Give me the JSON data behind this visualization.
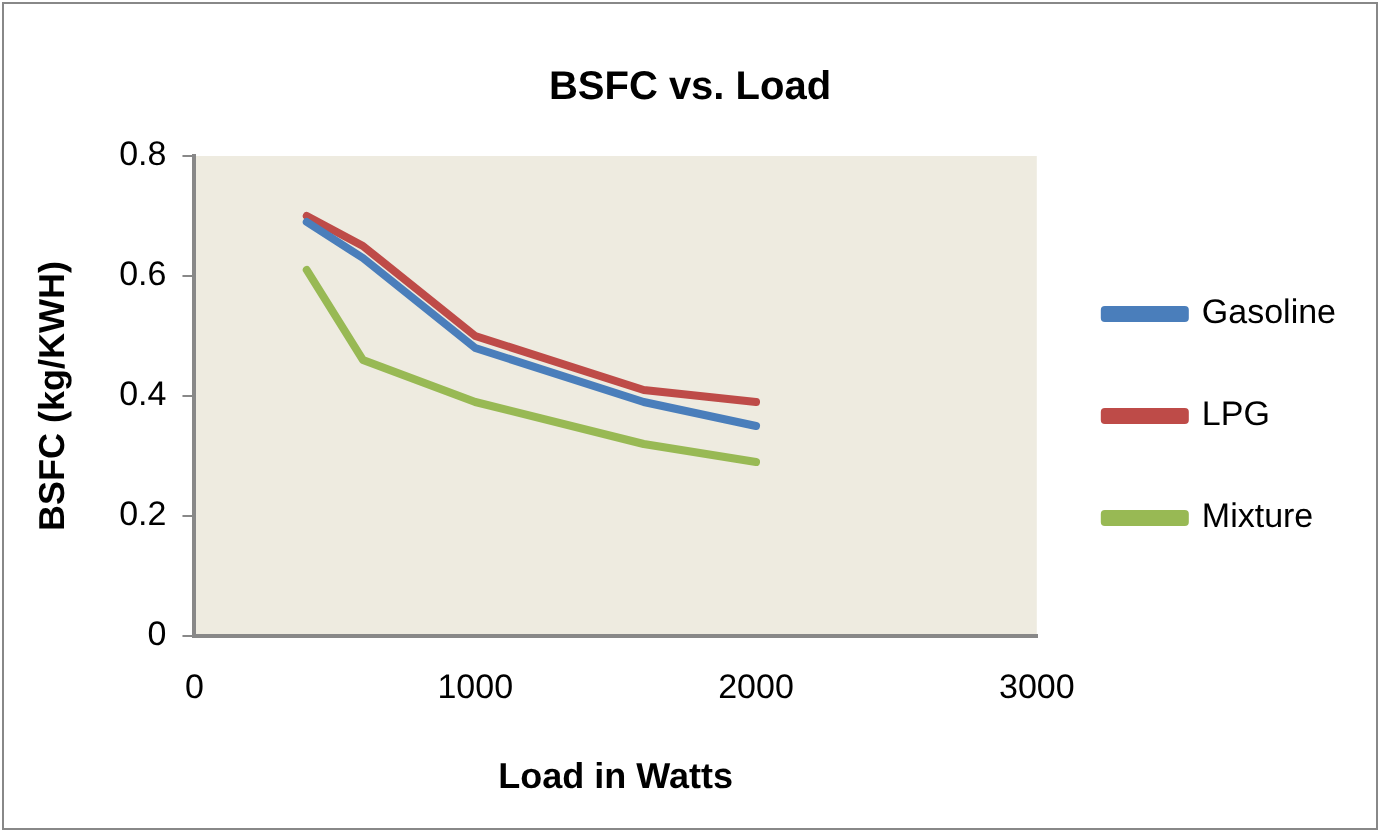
{
  "chart_data": {
    "type": "line",
    "title": "BSFC vs. Load",
    "xlabel": "Load in Watts",
    "ylabel": "BSFC (kg/KWH)",
    "x": [
      400,
      600,
      1000,
      1600,
      2000
    ],
    "series": [
      {
        "name": "Gasoline",
        "color": "#4a7ebb",
        "values": [
          0.69,
          0.63,
          0.48,
          0.39,
          0.35
        ]
      },
      {
        "name": "LPG",
        "color": "#be4b48",
        "values": [
          0.7,
          0.65,
          0.5,
          0.41,
          0.39
        ]
      },
      {
        "name": "Mixture",
        "color": "#98b954",
        "values": [
          0.61,
          0.46,
          0.39,
          0.32,
          0.29
        ]
      }
    ],
    "xlim": [
      0,
      3000
    ],
    "xticks": [
      0,
      1000,
      2000,
      3000
    ],
    "ylim": [
      0,
      0.8
    ],
    "yticks": [
      0,
      0.2,
      0.4,
      0.6,
      0.8
    ],
    "grid": false,
    "legend": "right",
    "marker": "none",
    "line_style": "solid"
  }
}
